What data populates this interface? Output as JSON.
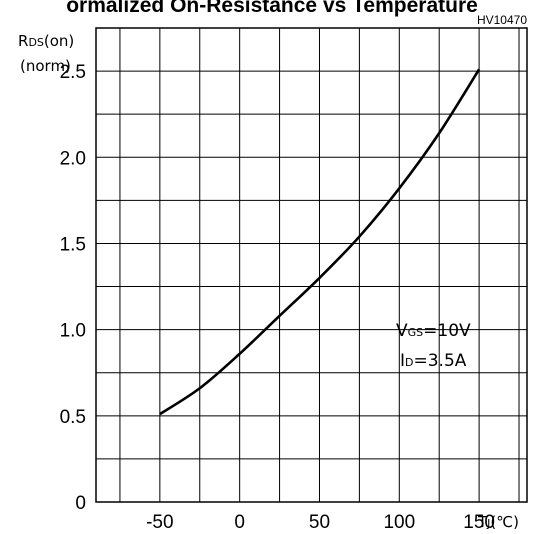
{
  "figure": {
    "title": "ormalized On-Resistance vs Temperature",
    "code": "HV10470"
  },
  "chart_data": {
    "type": "line",
    "ylabel": "RDS(on)",
    "ylabel_main": "R",
    "ylabel_sub": "DS",
    "ylabel_tail": "(on)",
    "ylabel_unit": "(norm)",
    "xlabel": "TJ(℃)",
    "xlabel_main": "T",
    "xlabel_sub": "J",
    "xlabel_tail": "(℃)",
    "xlim": [
      -90,
      180
    ],
    "ylim": [
      0,
      2.75
    ],
    "x_ticks": [
      {
        "value": -50,
        "label": "-50"
      },
      {
        "value": 0,
        "label": "0"
      },
      {
        "value": 50,
        "label": "50"
      },
      {
        "value": 100,
        "label": "100"
      },
      {
        "value": 150,
        "label": "150"
      }
    ],
    "y_ticks": [
      {
        "value": 0,
        "label": "0"
      },
      {
        "value": 0.5,
        "label": "0.5"
      },
      {
        "value": 1.0,
        "label": "1.0"
      },
      {
        "value": 1.5,
        "label": "1.5"
      },
      {
        "value": 2.0,
        "label": "2.0"
      },
      {
        "value": 2.5,
        "label": "2.5"
      }
    ],
    "x_grid_step": 25,
    "y_grid_step": 0.25,
    "grid": true,
    "series": [
      {
        "x": [
          -50,
          -25,
          0,
          25,
          50,
          75,
          100,
          125,
          150
        ],
        "y": [
          0.51,
          0.66,
          0.86,
          1.08,
          1.3,
          1.54,
          1.82,
          2.14,
          2.51
        ]
      }
    ],
    "annotation": {
      "vgs_main": "V",
      "vgs_sub": "GS",
      "vgs_value": "=10V",
      "id_main": "I",
      "id_sub": "D",
      "id_value": "=3.5A"
    }
  }
}
